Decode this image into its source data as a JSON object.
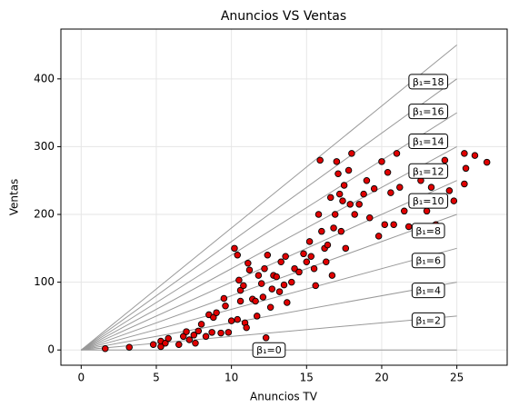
{
  "chart_data": {
    "type": "scatter",
    "title": "Anuncios VS Ventas",
    "x_label": "Anuncios TV",
    "y_label": "Ventas",
    "xlim": [
      -1.35,
      28.35
    ],
    "ylim": [
      -22.5,
      473.5
    ],
    "xticks": [
      0,
      5,
      10,
      15,
      20,
      25
    ],
    "yticks": [
      0,
      100,
      200,
      300,
      400
    ],
    "grid": true,
    "color": "#e00000",
    "x": [
      1.6,
      3.2,
      4.8,
      5.3,
      5.3,
      5.6,
      5.8,
      6.5,
      6.8,
      7.0,
      7.2,
      7.5,
      7.6,
      7.8,
      8.0,
      8.3,
      8.5,
      8.7,
      8.8,
      9.0,
      9.3,
      9.5,
      9.6,
      9.8,
      10.0,
      10.2,
      10.4,
      10.4,
      10.5,
      10.6,
      10.6,
      10.8,
      10.9,
      11.0,
      11.1,
      11.2,
      11.4,
      11.6,
      11.7,
      11.8,
      12.0,
      12.1,
      12.2,
      12.3,
      12.4,
      12.6,
      12.7,
      12.8,
      13.0,
      13.2,
      13.3,
      13.5,
      13.6,
      13.7,
      14.0,
      14.2,
      14.5,
      14.8,
      15.0,
      15.2,
      15.3,
      15.5,
      15.6,
      15.8,
      15.9,
      16.0,
      16.2,
      16.3,
      16.4,
      16.6,
      16.7,
      16.8,
      16.9,
      17.0,
      17.1,
      17.2,
      17.3,
      17.4,
      17.5,
      17.6,
      17.8,
      17.9,
      18.0,
      18.2,
      18.5,
      18.8,
      19.0,
      19.2,
      19.5,
      19.8,
      20.0,
      20.2,
      20.4,
      20.6,
      20.8,
      21.0,
      21.2,
      21.5,
      21.8,
      22.0,
      22.3,
      22.6,
      22.8,
      23.0,
      23.3,
      23.6,
      23.9,
      24.2,
      24.5,
      24.8,
      25.5,
      25.6,
      25.5,
      26.2,
      27.0
    ],
    "values": [
      2,
      4,
      8,
      5,
      13,
      10,
      17,
      8,
      20,
      27,
      15,
      22,
      10,
      28,
      38,
      20,
      52,
      26,
      48,
      55,
      25,
      76,
      65,
      26,
      43,
      150,
      140,
      45,
      103,
      88,
      72,
      95,
      40,
      33,
      128,
      118,
      75,
      72,
      50,
      110,
      98,
      78,
      120,
      18,
      140,
      63,
      90,
      110,
      108,
      86,
      130,
      96,
      138,
      70,
      100,
      120,
      115,
      142,
      130,
      160,
      138,
      120,
      95,
      200,
      280,
      175,
      150,
      130,
      155,
      225,
      110,
      180,
      200,
      278,
      260,
      230,
      175,
      220,
      243,
      150,
      265,
      215,
      290,
      200,
      215,
      230,
      250,
      195,
      238,
      168,
      278,
      185,
      262,
      232,
      185,
      290,
      240,
      205,
      182,
      215,
      265,
      250,
      220,
      205,
      240,
      185,
      270,
      280,
      235,
      220,
      290,
      268,
      245,
      287,
      277
    ],
    "lines": {
      "x": [
        0,
        25
      ],
      "color": "#999999",
      "slopes": [
        0,
        2,
        4,
        6,
        8,
        10,
        12,
        14,
        16,
        18
      ],
      "labels": [
        "β₁=0",
        "β₁=2",
        "β₁=4",
        "β₁=6",
        "β₁=8",
        "β₁=10",
        "β₁=12",
        "β₁=14",
        "β₁=16",
        "β₁=18"
      ]
    }
  }
}
